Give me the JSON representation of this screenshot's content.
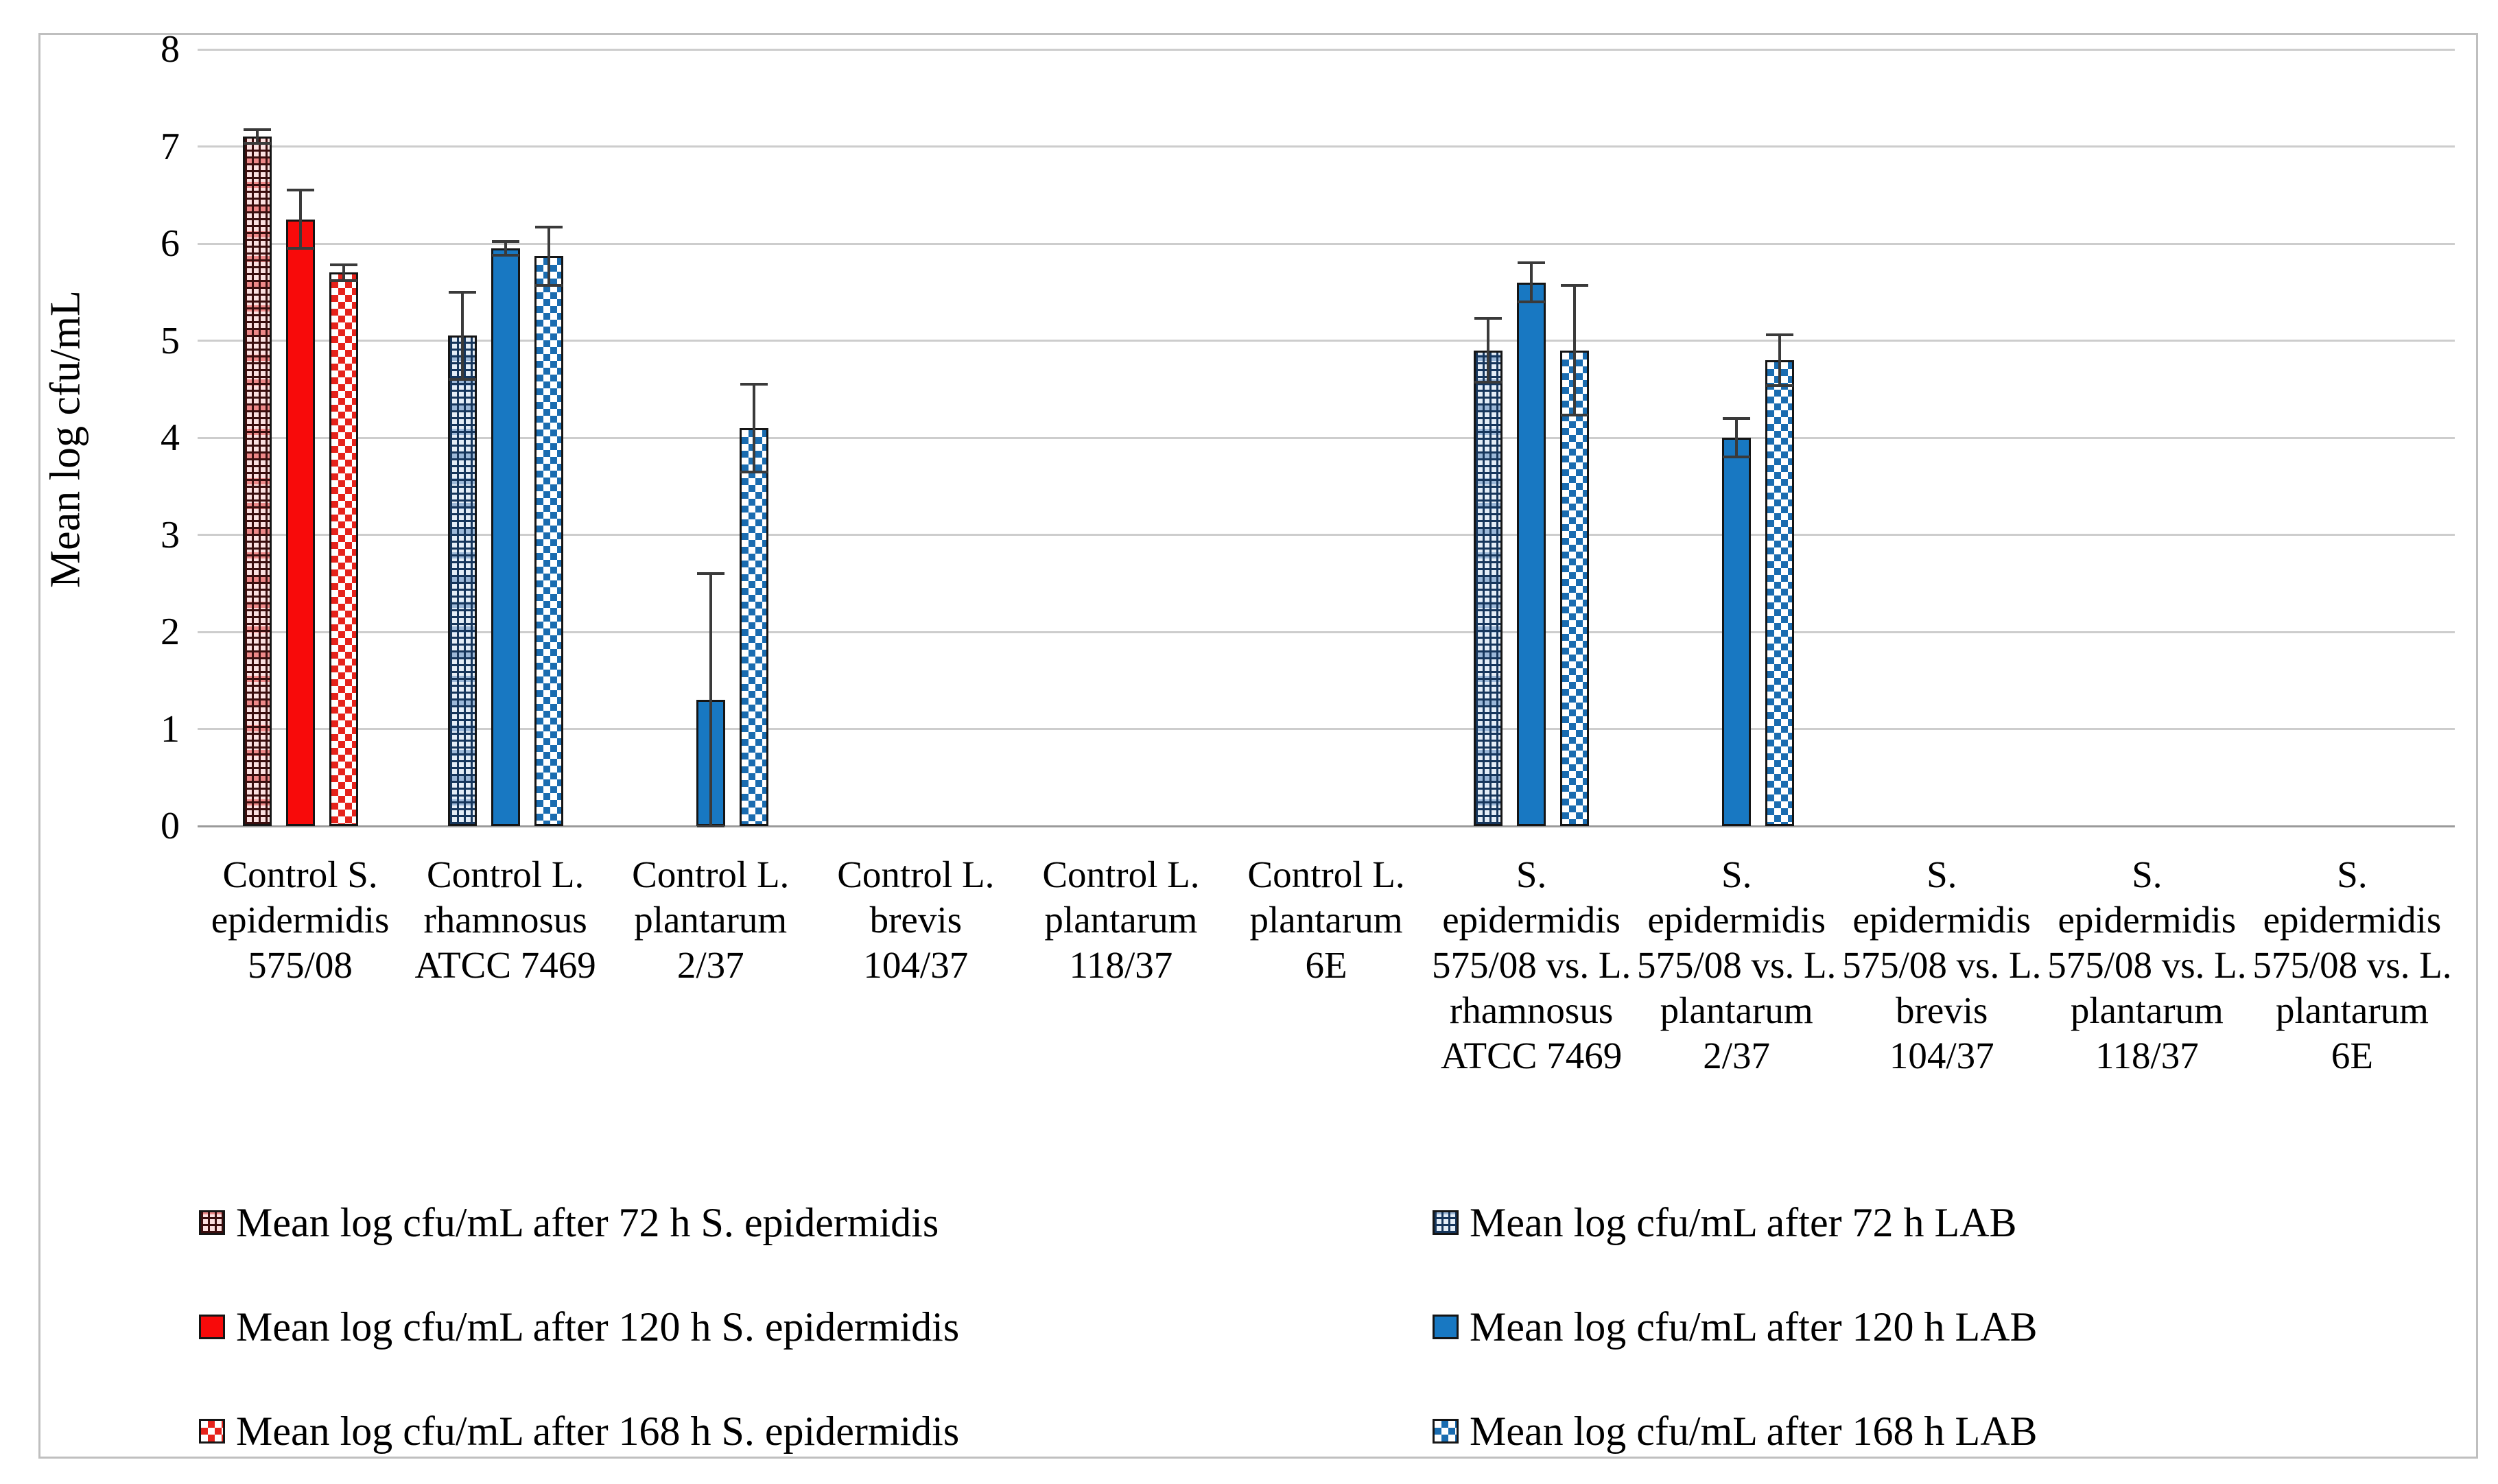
{
  "figure": {
    "background": "#ffffff",
    "frame_color": "#bfbfbf"
  },
  "y_axis": {
    "title": "Mean log cfu/mL",
    "ticks": [
      "0",
      "1",
      "2",
      "3",
      "4",
      "5",
      "6",
      "7",
      "8"
    ]
  },
  "chart_data": {
    "type": "bar",
    "title": "",
    "xlabel": "",
    "ylabel": "Mean log cfu/mL",
    "ylim": [
      0,
      8
    ],
    "ytick_step": 1,
    "grid": true,
    "legend_position": "bottom, two columns",
    "error_bars": true,
    "categories": [
      "Control S. epidermidis 575/08",
      "Control L. rhamnosus ATCC 7469",
      "Control L. plantarum 2/37",
      "Control L. brevis 104/37",
      "Control L. plantarum 118/37",
      "Control L. plantarum 6E",
      "S. epidermidis 575/08 vs. L. rhamnosus ATCC 7469",
      "S. epidermidis 575/08 vs. L. plantarum 2/37",
      "S. epidermidis 575/08 vs. L. brevis 104/37",
      "S. epidermidis 575/08 vs. L. plantarum 118/37",
      "S. epidermidis 575/08 vs. L. plantarum 6E"
    ],
    "category_label_lines": [
      [
        "Control S.",
        "epidermidis",
        "575/08"
      ],
      [
        "Control L.",
        "rhamnosus",
        "ATCC 7469"
      ],
      [
        "Control L.",
        "plantarum",
        "2/37"
      ],
      [
        "Control L.",
        "brevis",
        "104/37"
      ],
      [
        "Control L.",
        "plantarum",
        "118/37"
      ],
      [
        "Control L.",
        "plantarum",
        "6E"
      ],
      [
        "S.",
        "epidermidis",
        "575/08 vs. L.",
        "rhamnosus",
        "ATCC 7469"
      ],
      [
        "S.",
        "epidermidis",
        "575/08 vs. L.",
        "plantarum",
        "2/37"
      ],
      [
        "S.",
        "epidermidis",
        "575/08 vs. L.",
        "brevis",
        "104/37"
      ],
      [
        "S.",
        "epidermidis",
        "575/08 vs. L.",
        "plantarum",
        "118/37"
      ],
      [
        "S.",
        "epidermidis",
        "575/08 vs. L.",
        "plantarum",
        "6E"
      ]
    ],
    "series": [
      {
        "name": "Mean log cfu/mL after 72 h S. epidermidis",
        "style": "grid-red",
        "slot": 0,
        "values": [
          7.1,
          null,
          null,
          null,
          null,
          null,
          null,
          null,
          null,
          null,
          null
        ],
        "errors": [
          0.07,
          null,
          null,
          null,
          null,
          null,
          null,
          null,
          null,
          null,
          null
        ]
      },
      {
        "name": "Mean log cfu/mL after 120 h S. epidermidis",
        "style": "solid-red",
        "slot": 1,
        "values": [
          6.25,
          null,
          null,
          null,
          null,
          null,
          null,
          null,
          null,
          null,
          null
        ],
        "errors": [
          0.3,
          null,
          null,
          null,
          null,
          null,
          null,
          null,
          null,
          null,
          null
        ]
      },
      {
        "name": "Mean log cfu/mL after 168 h S. epidermidis",
        "style": "checker-red",
        "slot": 2,
        "values": [
          5.7,
          null,
          null,
          null,
          null,
          null,
          null,
          null,
          null,
          null,
          null
        ],
        "errors": [
          0.08,
          null,
          null,
          null,
          null,
          null,
          null,
          null,
          null,
          null,
          null
        ]
      },
      {
        "name": "Mean log cfu/mL after 72 h LAB",
        "style": "grid-blue",
        "slot": 0,
        "values": [
          null,
          5.05,
          null,
          null,
          null,
          null,
          4.9,
          null,
          null,
          null,
          null
        ],
        "errors": [
          null,
          0.45,
          null,
          null,
          null,
          null,
          0.33,
          null,
          null,
          null,
          null
        ]
      },
      {
        "name": "Mean log cfu/mL after 120 h LAB",
        "style": "solid-blue",
        "slot": 1,
        "values": [
          null,
          5.95,
          1.3,
          null,
          null,
          null,
          5.6,
          4.0,
          null,
          null,
          null
        ],
        "errors": [
          null,
          0.07,
          1.3,
          null,
          null,
          null,
          0.2,
          0.2,
          null,
          null,
          null
        ]
      },
      {
        "name": "Mean log cfu/mL after 168 h LAB",
        "style": "checker-blue",
        "slot": 2,
        "values": [
          null,
          5.87,
          4.1,
          null,
          null,
          null,
          4.9,
          4.8,
          null,
          null,
          null
        ],
        "errors": [
          null,
          0.3,
          0.45,
          null,
          null,
          null,
          0.67,
          0.26,
          null,
          null,
          null
        ]
      }
    ],
    "colors": {
      "red_solid": "#f80a0a",
      "blue_solid": "#1878c2",
      "grid_red_line": "#3a0e0e",
      "grid_blue_line": "#16365c",
      "checker_red": "#e6231c",
      "checker_blue": "#1a6cb0",
      "gridline": "#cdcdcd",
      "axis_line": "#9a9a9a",
      "error_bar": "#3a3a3a"
    }
  },
  "legend": {
    "left_column": [
      "Mean log cfu/mL after 72 h S. epidermidis",
      "Mean log cfu/mL after 120 h S. epidermidis",
      "Mean log cfu/mL after 168 h S. epidermidis"
    ],
    "right_column": [
      "Mean log cfu/mL after 72 h LAB",
      "Mean log cfu/mL after 120 h LAB",
      "Mean log cfu/mL after 168 h LAB"
    ]
  }
}
